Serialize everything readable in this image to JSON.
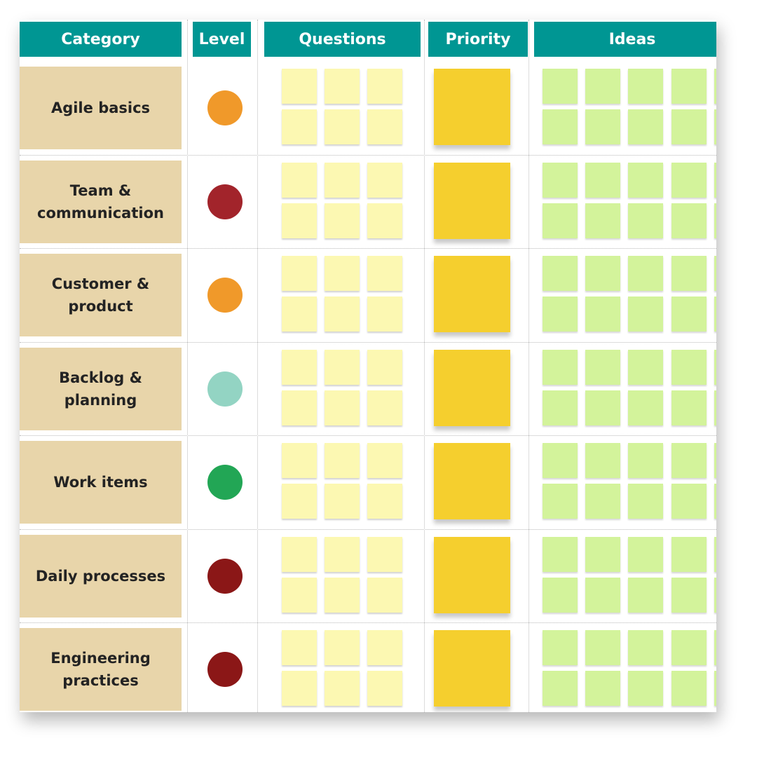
{
  "board": {
    "headers": {
      "category": "Category",
      "level": "Level",
      "questions": "Questions",
      "priority": "Priority",
      "ideas": "Ideas"
    },
    "colors": {
      "header": "#009693",
      "category_bg": "#e8d5aa",
      "question_note": "#fcf8b2",
      "priority_note": "#f5cf2e",
      "idea_note": "#d3f39b"
    },
    "rows": [
      {
        "category": "Agile basics",
        "level_color": "#f0992a"
      },
      {
        "category": "Team &\ncommunication",
        "level_color": "#a2242b"
      },
      {
        "category": "Customer &\nproduct",
        "level_color": "#f0992a"
      },
      {
        "category": "Backlog &\nplanning",
        "level_color": "#93d4c3"
      },
      {
        "category": "Work items",
        "level_color": "#22a655"
      },
      {
        "category": "Daily processes",
        "level_color": "#8b1717"
      },
      {
        "category": "Engineering\npractices",
        "level_color": "#8b1717"
      }
    ]
  }
}
